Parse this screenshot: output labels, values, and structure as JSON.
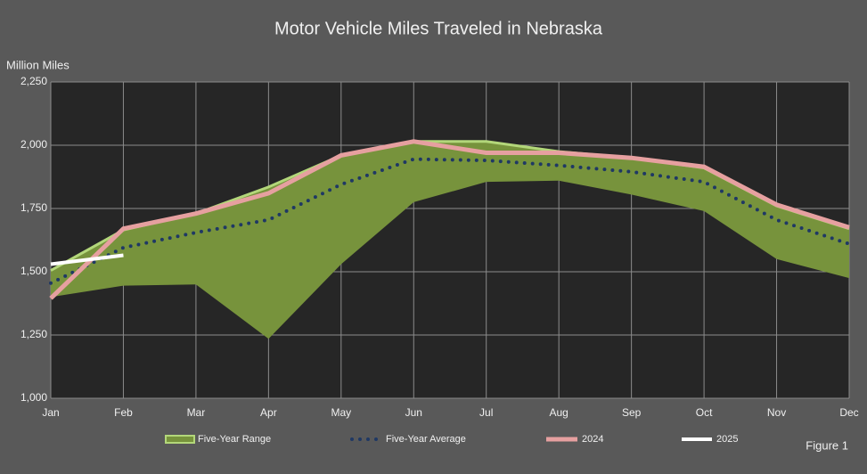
{
  "chart_data": {
    "type": "line",
    "title": "Motor Vehicle Miles Traveled in Nebraska",
    "y_label": "Million Miles",
    "annotation": "Figure 1",
    "categories": [
      "Jan",
      "Feb",
      "Mar",
      "Apr",
      "May",
      "Jun",
      "Jul",
      "Aug",
      "Sep",
      "Oct",
      "Nov",
      "Dec"
    ],
    "ylim": [
      1000,
      2250
    ],
    "yticks": [
      {
        "value": 1000,
        "label": "1,000"
      },
      {
        "value": 1250,
        "label": "1,250"
      },
      {
        "value": 1500,
        "label": "1,500"
      },
      {
        "value": 1750,
        "label": "1,750"
      },
      {
        "value": 2000,
        "label": "2,000"
      },
      {
        "value": 2250,
        "label": "2,250"
      }
    ],
    "grid": true,
    "range": {
      "name": "Five-Year Range",
      "color": "#77933c",
      "edge_color": "#b3d77a",
      "low": [
        1400,
        1445,
        1450,
        1235,
        1530,
        1775,
        1855,
        1860,
        1805,
        1740,
        1550,
        1475
      ],
      "high": [
        1505,
        1665,
        1730,
        1835,
        1960,
        2015,
        2015,
        1975,
        1950,
        1910,
        1760,
        1670
      ]
    },
    "series": [
      {
        "name": "Five-Year Average",
        "color": "#1f3864",
        "style": "dotted",
        "values": [
          1455,
          1595,
          1655,
          1705,
          1845,
          1945,
          1940,
          1920,
          1895,
          1855,
          1705,
          1610
        ]
      },
      {
        "name": "2024",
        "color": "#e6a0a0",
        "style": "solid",
        "values": [
          1395,
          1670,
          1730,
          1810,
          1960,
          2015,
          1970,
          1970,
          1950,
          1915,
          1765,
          1675
        ]
      },
      {
        "name": "2025",
        "color": "#ffffff",
        "style": "solid",
        "values": [
          1530,
          1565,
          null,
          null,
          null,
          null,
          null,
          null,
          null,
          null,
          null,
          null
        ]
      }
    ]
  }
}
